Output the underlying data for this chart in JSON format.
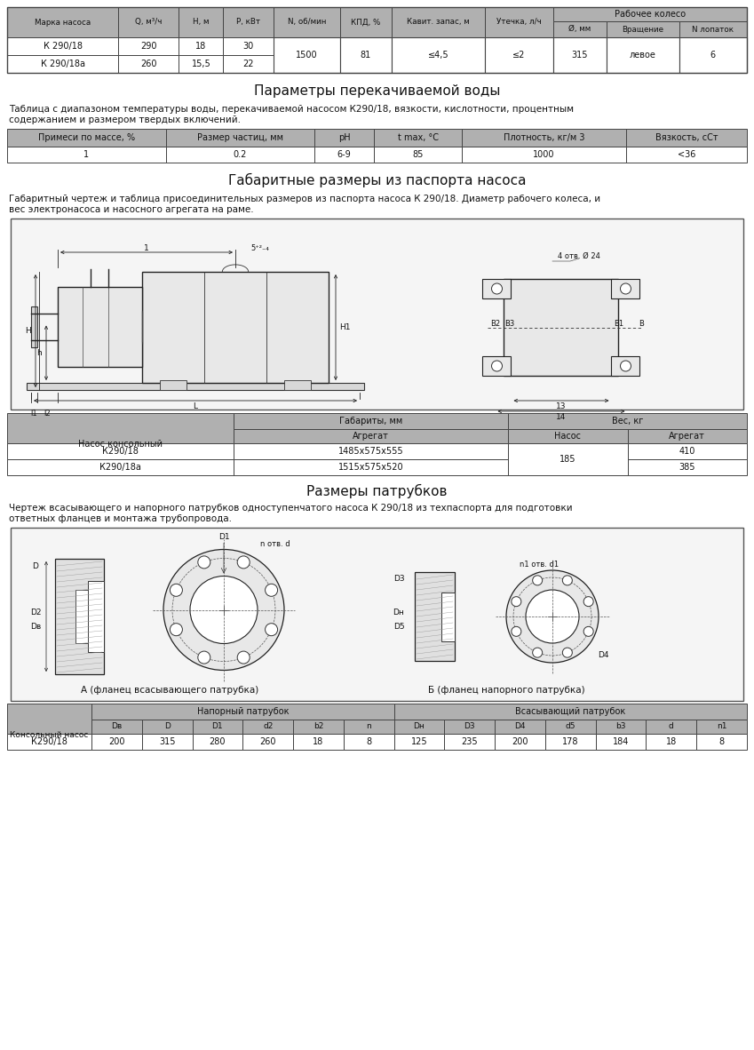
{
  "bg_color": "#ffffff",
  "header_bg": "#b0b0b0",
  "border_color": "#444444",
  "table1_headers_row1": [
    "Марка насоса",
    "Q, м³/ч",
    "Н, м",
    "P, кВт",
    "N, об/мин",
    "КПД, %",
    "Кавит. запас, м",
    "Утечка, л/ч",
    "Рабочее колесо"
  ],
  "table1_headers_row2": [
    "Ø, мм",
    "Вращение",
    "N лопаток"
  ],
  "table1_row1": [
    "К 290/18",
    "290",
    "18",
    "30",
    "1500",
    "81",
    "≤4,5",
    "≤2",
    "315",
    "левое",
    "6"
  ],
  "table1_row2": [
    "К 290/18а",
    "260",
    "15,5",
    "22",
    "",
    "",
    "",
    "",
    "",
    "",
    ""
  ],
  "section1_title": "Параметры перекачиваемой воды",
  "section1_desc1": "Таблица с диапазоном температуры воды, перекачиваемой насосом К290/18, вязкости, кислотности, процентным",
  "section1_desc2": "содержанием и размером твердых включений.",
  "table2_headers": [
    "Примеси по массе, %",
    "Размер частиц, мм",
    "pH",
    "t max, °С",
    "Плотность, кг/м 3",
    "Вязкость, сСт"
  ],
  "table2_row1": [
    "1",
    "0.2",
    "6-9",
    "85",
    "1000",
    "<36"
  ],
  "section2_title": "Габаритные размеры из паспорта насоса",
  "section2_desc1": "Габаритный чертеж и таблица присоединительных размеров из паспорта насоса К 290/18. Диаметр рабочего колеса, и",
  "section2_desc2": "вес электронасоса и насосного агрегата на раме.",
  "table3_col1": "Насос консольный",
  "table3_gab": "Габариты, мм",
  "table3_agregat": "Агрегат",
  "table3_ves": "Вес, кг",
  "table3_nasos": "Насос",
  "table3_row1": [
    "К290/18",
    "1485x575x555",
    "185",
    "410"
  ],
  "table3_row2": [
    "К290/18а",
    "1515x575x520",
    "",
    "385"
  ],
  "section3_title": "Размеры патрубков",
  "section3_desc1": "Чертеж всасывающего и напорного патрубков одноступенчатого насоса К 290/18 из техпаспорта для подготовки",
  "section3_desc2": "ответных фланцев и монтажа трубопровода.",
  "flange_a_label": "А (фланец всасывающего патрубка)",
  "flange_b_label": "Б (фланец напорного патрубка)",
  "table4_col1": "Консольный насос",
  "table4_naport": "Напорный патрубок",
  "table4_vsas": "Всасывающий патрубок",
  "table4_headers2": [
    "Dв",
    "D",
    "D1",
    "d2",
    "b2",
    "n",
    "Dн",
    "D3",
    "D4",
    "d5",
    "b3",
    "d",
    "n1"
  ],
  "table4_row1": [
    "К290/18",
    "200",
    "315",
    "280",
    "260",
    "18",
    "8",
    "125",
    "235",
    "200",
    "178",
    "184",
    "18",
    "8"
  ]
}
